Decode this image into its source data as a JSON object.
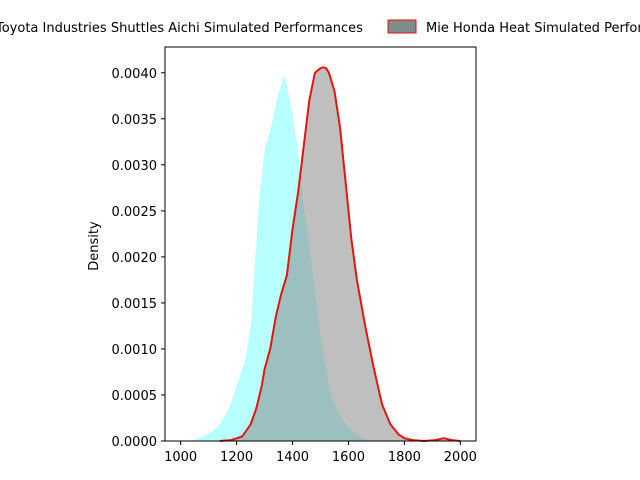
{
  "chart_data": {
    "type": "area",
    "title": "",
    "xlabel": "",
    "ylabel": "Density",
    "xlim": [
      944,
      2056
    ],
    "ylim": [
      0,
      0.00428
    ],
    "xticks": [
      1000,
      1200,
      1400,
      1600,
      1800,
      2000
    ],
    "xtick_labels": [
      "1000",
      "1200",
      "1400",
      "1600",
      "1800",
      "2000"
    ],
    "yticks": [
      0,
      0.0005,
      0.001,
      0.0015,
      0.002,
      0.0025,
      0.003,
      0.0035,
      0.004
    ],
    "ytick_labels": [
      "0.0000",
      "0.0005",
      "0.0010",
      "0.0015",
      "0.0020",
      "0.0025",
      "0.0030",
      "0.0035",
      "0.0040"
    ],
    "grid": false,
    "legend_position": "top, outside plot",
    "series": [
      {
        "name": "Toyota Industries Shuttles Aichi Simulated Performances",
        "fill_color": "#00ffff",
        "fill_alpha": 0.28,
        "line_color": "#ffffff",
        "x": [
          1030,
          1080,
          1130,
          1170,
          1200,
          1230,
          1250,
          1260,
          1280,
          1300,
          1320,
          1340,
          1360,
          1370,
          1380,
          1400,
          1420,
          1440,
          1460,
          1480,
          1500,
          1520,
          1540,
          1560,
          1580,
          1600,
          1620,
          1650,
          1680,
          1720,
          1760,
          1800
        ],
        "y": [
          0.0,
          6e-05,
          0.00015,
          0.00035,
          0.00062,
          0.0009,
          0.0013,
          0.0018,
          0.0027,
          0.0032,
          0.0034,
          0.0037,
          0.0039,
          0.004,
          0.0039,
          0.0036,
          0.0032,
          0.0026,
          0.0022,
          0.0017,
          0.0012,
          0.0008,
          0.0005,
          0.00034,
          0.00024,
          0.00016,
          0.0001,
          4e-05,
          1e-05,
          0.0,
          0.0,
          0.0
        ]
      },
      {
        "name": "Mie Honda Heat Simulated Performances",
        "fill_color": "#808080",
        "fill_alpha": 0.5,
        "line_color": "#e8140c",
        "x": [
          1140,
          1180,
          1220,
          1250,
          1270,
          1290,
          1300,
          1320,
          1340,
          1360,
          1380,
          1400,
          1420,
          1440,
          1460,
          1480,
          1500,
          1510,
          1520,
          1530,
          1550,
          1570,
          1590,
          1610,
          1630,
          1660,
          1690,
          1720,
          1750,
          1780,
          1800,
          1830,
          1870,
          1910,
          1940,
          1970,
          2000
        ],
        "y": [
          0.0,
          1e-05,
          5e-05,
          0.00018,
          0.00035,
          0.0006,
          0.00078,
          0.001,
          0.00135,
          0.0016,
          0.0018,
          0.0023,
          0.0027,
          0.0032,
          0.0037,
          0.004,
          0.00405,
          0.00406,
          0.00405,
          0.004,
          0.0038,
          0.0034,
          0.0028,
          0.0022,
          0.00175,
          0.00125,
          0.0008,
          0.0004,
          0.00018,
          7e-05,
          3e-05,
          1e-05,
          0.0,
          1e-05,
          3e-05,
          1e-05,
          0.0
        ]
      }
    ]
  }
}
